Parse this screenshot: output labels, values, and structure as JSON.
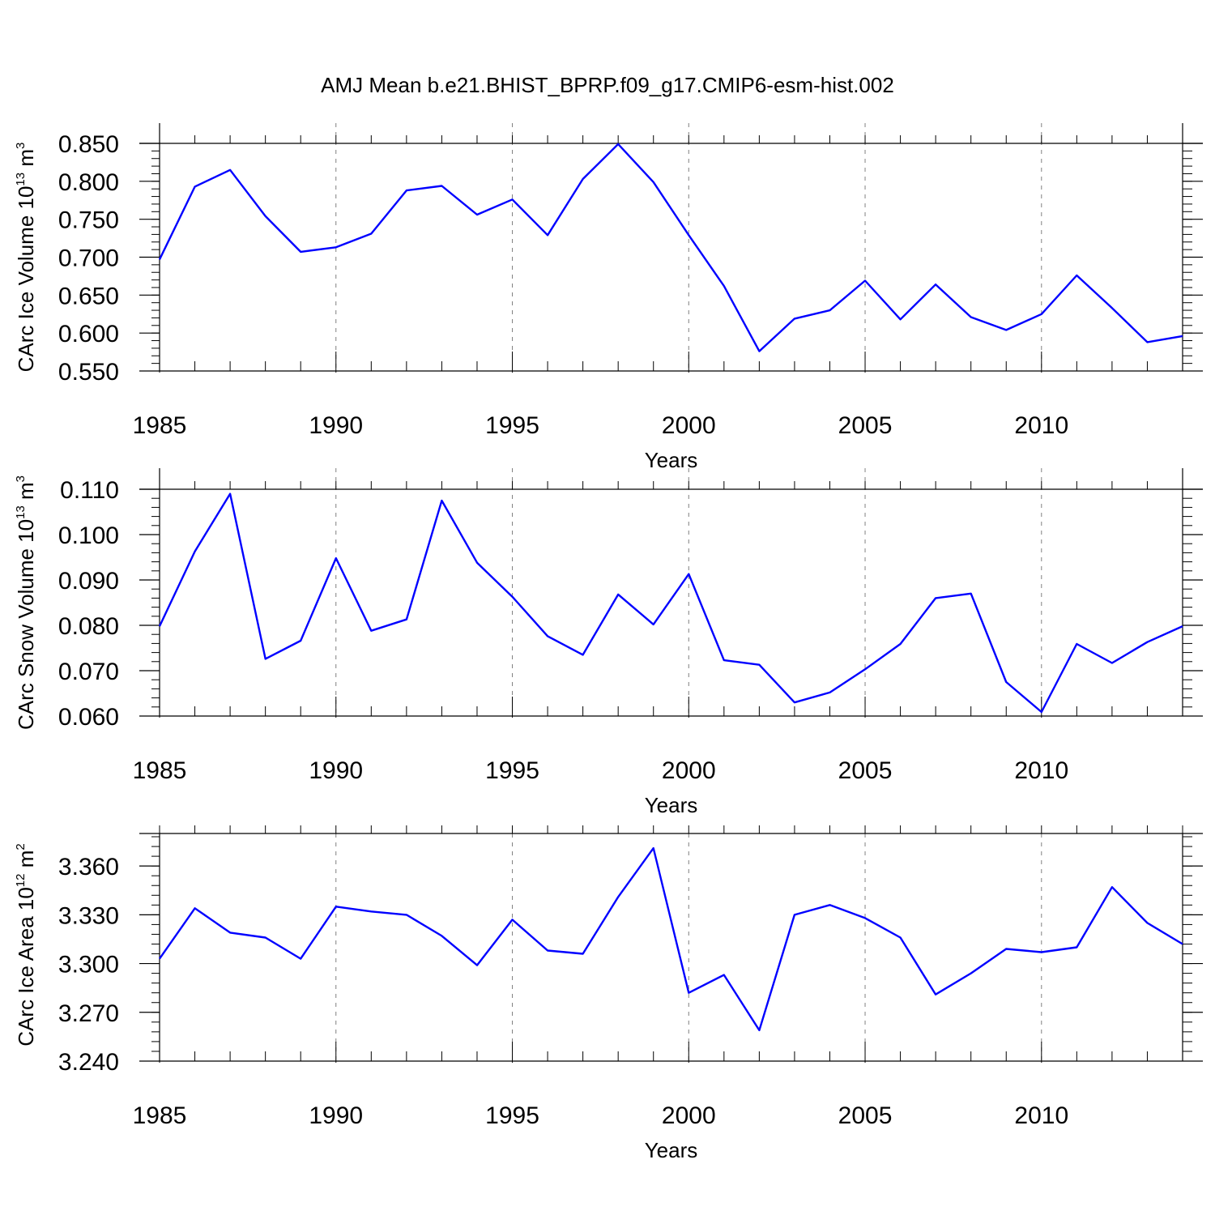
{
  "title": "AMJ Mean b.e21.BHIST_BPRP.f09_g17.CMIP6-esm-hist.002",
  "line_color": "#0000ff",
  "grid_color": "#808080",
  "chart_data": [
    {
      "type": "line",
      "xlabel": "Years",
      "ylabel": {
        "prefix": "CArc Ice Volume 10",
        "exp": "13",
        "unit": " m",
        "unit_exp": "3"
      },
      "xlim": [
        1985,
        2014
      ],
      "ylim": [
        0.55,
        0.85
      ],
      "xticks": [
        1985,
        1990,
        1995,
        2000,
        2005,
        2010
      ],
      "xtick_labels": [
        "1985",
        "1990",
        "1995",
        "2000",
        "2005",
        "2010"
      ],
      "yticks": [
        0.55,
        0.6,
        0.65,
        0.7,
        0.75,
        0.8,
        0.85
      ],
      "ytick_labels": [
        "0.550",
        "0.600",
        "0.650",
        "0.700",
        "0.750",
        "0.800",
        "0.850"
      ],
      "y_minor_step": 0.01,
      "x": [
        1985,
        1986,
        1987,
        1988,
        1989,
        1990,
        1991,
        1992,
        1993,
        1994,
        1995,
        1996,
        1997,
        1998,
        1999,
        2000,
        2001,
        2002,
        2003,
        2004,
        2005,
        2006,
        2007,
        2008,
        2009,
        2010,
        2011,
        2012,
        2013,
        2014
      ],
      "values": [
        0.697,
        0.793,
        0.815,
        0.754,
        0.707,
        0.713,
        0.731,
        0.788,
        0.794,
        0.756,
        0.776,
        0.729,
        0.803,
        0.849,
        0.799,
        0.729,
        0.662,
        0.576,
        0.619,
        0.63,
        0.669,
        0.618,
        0.664,
        0.621,
        0.604,
        0.625,
        0.676,
        0.633,
        0.588,
        0.596
      ]
    },
    {
      "type": "line",
      "xlabel": "Years",
      "ylabel": {
        "prefix": "CArc Snow Volume 10",
        "exp": "13",
        "unit": " m",
        "unit_exp": "3"
      },
      "xlim": [
        1985,
        2014
      ],
      "ylim": [
        0.06,
        0.11
      ],
      "xticks": [
        1985,
        1990,
        1995,
        2000,
        2005,
        2010
      ],
      "xtick_labels": [
        "1985",
        "1990",
        "1995",
        "2000",
        "2005",
        "2010"
      ],
      "yticks": [
        0.06,
        0.07,
        0.08,
        0.09,
        0.1,
        0.11
      ],
      "ytick_labels": [
        "0.060",
        "0.070",
        "0.080",
        "0.090",
        "0.100",
        "0.110"
      ],
      "y_minor_step": 0.002,
      "x": [
        1985,
        1986,
        1987,
        1988,
        1989,
        1990,
        1991,
        1992,
        1993,
        1994,
        1995,
        1996,
        1997,
        1998,
        1999,
        2000,
        2001,
        2002,
        2003,
        2004,
        2005,
        2006,
        2007,
        2008,
        2009,
        2010,
        2011,
        2012,
        2013,
        2014
      ],
      "values": [
        0.0798,
        0.0963,
        0.109,
        0.0726,
        0.0766,
        0.0948,
        0.0788,
        0.0813,
        0.1075,
        0.0938,
        0.0863,
        0.0776,
        0.0735,
        0.0868,
        0.0802,
        0.0913,
        0.0723,
        0.0713,
        0.063,
        0.0652,
        0.0703,
        0.0759,
        0.086,
        0.087,
        0.0675,
        0.0609,
        0.0759,
        0.0717,
        0.0763,
        0.0798
      ]
    },
    {
      "type": "line",
      "xlabel": "Years",
      "ylabel": {
        "prefix": "CArc Ice Area 10",
        "exp": "12",
        "unit": " m",
        "unit_exp": "2"
      },
      "xlim": [
        1985,
        2014
      ],
      "ylim": [
        3.24,
        3.38
      ],
      "xticks": [
        1985,
        1990,
        1995,
        2000,
        2005,
        2010
      ],
      "xtick_labels": [
        "1985",
        "1990",
        "1995",
        "2000",
        "2005",
        "2010"
      ],
      "yticks": [
        3.24,
        3.27,
        3.3,
        3.33,
        3.36
      ],
      "ytick_labels": [
        "3.240",
        "3.270",
        "3.300",
        "3.330",
        "3.360"
      ],
      "y_minor_step": 0.006,
      "x": [
        1985,
        1986,
        1987,
        1988,
        1989,
        1990,
        1991,
        1992,
        1993,
        1994,
        1995,
        1996,
        1997,
        1998,
        1999,
        2000,
        2001,
        2002,
        2003,
        2004,
        2005,
        2006,
        2007,
        2008,
        2009,
        2010,
        2011,
        2012,
        2013,
        2014
      ],
      "values": [
        3.303,
        3.334,
        3.319,
        3.316,
        3.303,
        3.335,
        3.332,
        3.33,
        3.317,
        3.299,
        3.327,
        3.308,
        3.306,
        3.341,
        3.371,
        3.282,
        3.293,
        3.259,
        3.33,
        3.336,
        3.328,
        3.316,
        3.281,
        3.294,
        3.309,
        3.307,
        3.31,
        3.347,
        3.325,
        3.312
      ]
    }
  ]
}
